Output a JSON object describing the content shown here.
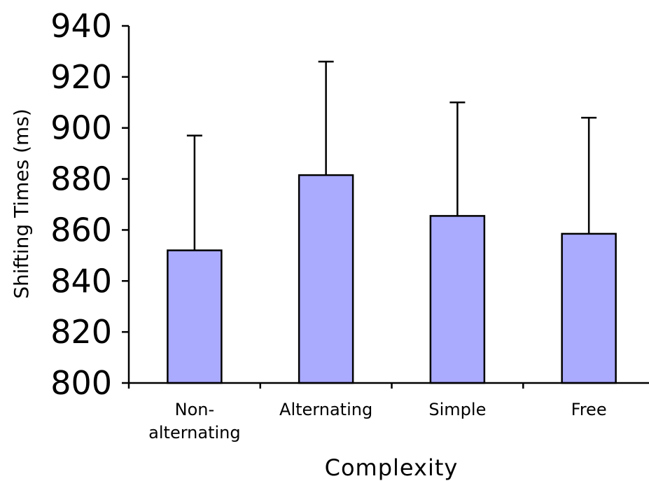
{
  "chart_data": {
    "type": "bar",
    "xlabel": "Complexity",
    "ylabel": "Shifting  Times  (ms)",
    "ylim": [
      800,
      940
    ],
    "yticks": [
      "800",
      "820",
      "840",
      "860",
      "880",
      "900",
      "920",
      "940"
    ],
    "categories": [
      {
        "lines": [
          "Non-",
          "alternating"
        ]
      },
      {
        "lines": [
          "Alternating"
        ]
      },
      {
        "lines": [
          "Simple"
        ]
      },
      {
        "lines": [
          "Free"
        ]
      }
    ],
    "values": [
      852,
      881.5,
      865.5,
      858.5
    ],
    "error_upper": [
      897,
      926,
      910,
      904
    ],
    "bar_color": "#aaaaff",
    "grid": false,
    "legend": "none"
  }
}
